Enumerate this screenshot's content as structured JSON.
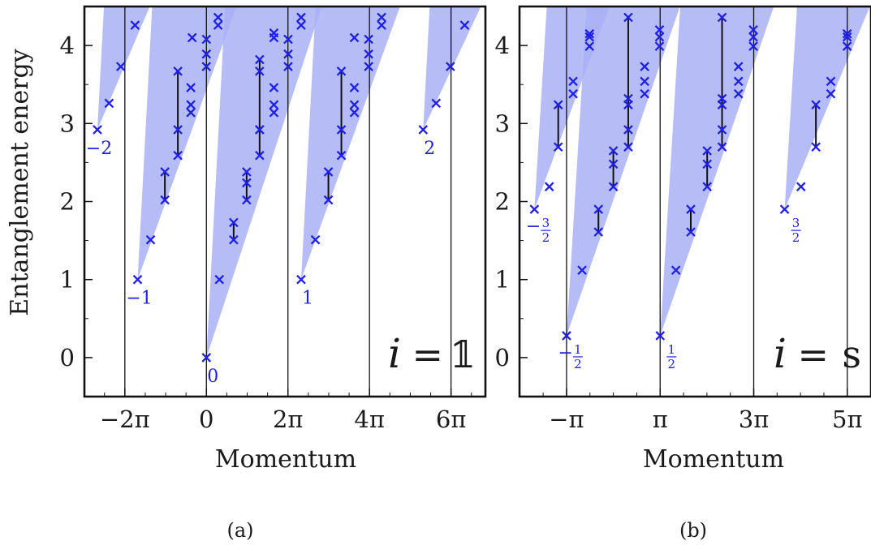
{
  "figure": {
    "panel_a_caption": "(a)",
    "panel_b_caption": "(b)"
  },
  "chart_data": [
    {
      "type": "scatter",
      "panel": "a",
      "xlabel": "Momentum",
      "ylabel": "Entanglement energy",
      "title": "",
      "xlim": [
        -9.4,
        21.5
      ],
      "ylim": [
        -0.5,
        4.5
      ],
      "x_unit": "π",
      "xticks": [
        -6.283,
        0,
        6.283,
        12.566,
        18.85
      ],
      "xtick_labels": [
        "−2π",
        "0",
        "2π",
        "4π",
        "6π"
      ],
      "yticks": [
        0,
        1,
        2,
        3,
        4
      ],
      "ytick_labels": [
        "0",
        "1",
        "2",
        "3",
        "4"
      ],
      "vlines": [
        -6.283,
        0,
        6.283,
        12.566,
        18.85
      ],
      "annotation": {
        "lhs": "i",
        "eq": "=",
        "rhs": "𝟙"
      },
      "marker_color": "#1f1fe6",
      "cone_color": "#a9b0f5",
      "sectors": [
        {
          "label": "−2",
          "apex": [
            -8.4,
            2.92
          ],
          "points": [
            [
              -8.4,
              2.92
            ],
            [
              -7.5,
              3.26
            ],
            [
              -6.6,
              3.73
            ],
            [
              -5.5,
              4.26
            ]
          ],
          "bars": []
        },
        {
          "label": "−1",
          "apex": [
            -5.3,
            1.0
          ],
          "points": [
            [
              -5.3,
              1.0
            ],
            [
              -4.3,
              1.51
            ],
            [
              -3.2,
              2.02
            ],
            [
              -3.2,
              2.38
            ],
            [
              -2.2,
              2.59
            ],
            [
              -2.2,
              2.92
            ],
            [
              -2.2,
              3.67
            ],
            [
              -1.2,
              3.14
            ],
            [
              -1.2,
              3.24
            ],
            [
              -1.2,
              3.46
            ],
            [
              -1.1,
              4.1
            ],
            [
              0,
              3.73
            ],
            [
              0,
              3.89
            ],
            [
              0,
              4.08
            ],
            [
              0.9,
              4.26
            ],
            [
              0.9,
              4.36
            ]
          ],
          "bars": [
            [
              -3.2,
              2.02,
              2.38
            ],
            [
              -2.2,
              2.59,
              3.67
            ]
          ]
        },
        {
          "label": "0",
          "apex": [
            0,
            0.0
          ],
          "points": [
            [
              0,
              0.0
            ],
            [
              1.0,
              1.0
            ],
            [
              2.1,
              1.51
            ],
            [
              2.1,
              1.73
            ],
            [
              3.1,
              2.02
            ],
            [
              3.1,
              2.24
            ],
            [
              3.1,
              2.38
            ],
            [
              4.1,
              2.59
            ],
            [
              4.1,
              2.92
            ],
            [
              4.1,
              2.92
            ],
            [
              4.1,
              3.67
            ],
            [
              4.1,
              3.82
            ],
            [
              5.2,
              3.14
            ],
            [
              5.2,
              3.24
            ],
            [
              5.2,
              3.46
            ],
            [
              5.2,
              4.1
            ],
            [
              5.2,
              4.16
            ],
            [
              6.3,
              3.73
            ],
            [
              6.3,
              3.89
            ],
            [
              6.3,
              4.08
            ],
            [
              7.3,
              4.26
            ],
            [
              7.3,
              4.36
            ]
          ],
          "bars": [
            [
              2.1,
              1.51,
              1.73
            ],
            [
              3.1,
              2.02,
              2.38
            ],
            [
              4.1,
              2.59,
              3.82
            ]
          ]
        },
        {
          "label": "1",
          "apex": [
            7.3,
            1.0
          ],
          "points": [
            [
              7.3,
              1.0
            ],
            [
              8.4,
              1.51
            ],
            [
              9.4,
              2.02
            ],
            [
              9.4,
              2.38
            ],
            [
              10.4,
              2.59
            ],
            [
              10.4,
              2.92
            ],
            [
              10.4,
              3.67
            ],
            [
              11.4,
              3.14
            ],
            [
              11.4,
              3.24
            ],
            [
              11.4,
              3.46
            ],
            [
              11.4,
              4.1
            ],
            [
              12.5,
              3.73
            ],
            [
              12.5,
              3.89
            ],
            [
              12.5,
              4.08
            ],
            [
              13.5,
              4.26
            ],
            [
              13.5,
              4.36
            ]
          ],
          "bars": [
            [
              9.4,
              2.02,
              2.38
            ],
            [
              10.4,
              2.59,
              3.67
            ]
          ]
        },
        {
          "label": "2",
          "apex": [
            16.7,
            2.92
          ],
          "points": [
            [
              16.7,
              2.92
            ],
            [
              17.7,
              3.26
            ],
            [
              18.8,
              3.73
            ],
            [
              19.9,
              4.26
            ]
          ],
          "bars": []
        }
      ]
    },
    {
      "type": "scatter",
      "panel": "b",
      "xlabel": "Momentum",
      "ylabel": "",
      "title": "",
      "xlim": [
        -6.3,
        17.3
      ],
      "ylim": [
        -0.5,
        4.5
      ],
      "x_unit": "π",
      "xticks": [
        -3.142,
        3.142,
        9.425,
        15.708
      ],
      "xtick_labels": [
        "−π",
        "π",
        "3π",
        "5π"
      ],
      "yticks": [
        0,
        1,
        2,
        3,
        4
      ],
      "ytick_labels": [
        "0",
        "1",
        "2",
        "3",
        "4"
      ],
      "vlines": [
        -3.142,
        3.142,
        9.425,
        15.708
      ],
      "annotation": {
        "lhs": "i",
        "eq": "=",
        "rhs": "s"
      },
      "marker_color": "#1f1fe6",
      "cone_color": "#a9b0f5",
      "sectors": [
        {
          "label_num": "3",
          "label_den": "2",
          "label_sign": "−",
          "apex": [
            -5.3,
            1.9
          ],
          "points": [
            [
              -5.3,
              1.9
            ],
            [
              -4.3,
              2.19
            ],
            [
              -3.7,
              2.7
            ],
            [
              -3.7,
              3.24
            ],
            [
              -2.7,
              3.38
            ],
            [
              -2.7,
              3.54
            ],
            [
              -1.6,
              3.99
            ],
            [
              -1.6,
              4.11
            ],
            [
              -1.6,
              4.15
            ]
          ],
          "bars": [
            [
              -3.7,
              2.7,
              3.24
            ]
          ]
        },
        {
          "label_num": "1",
          "label_den": "2",
          "label_sign": "−",
          "apex": [
            -3.142,
            0.28
          ],
          "points": [
            [
              -3.142,
              0.28
            ],
            [
              -2.1,
              1.12
            ],
            [
              -1.0,
              1.61
            ],
            [
              -1.0,
              1.9
            ],
            [
              0.0,
              2.19
            ],
            [
              0.0,
              2.48
            ],
            [
              0.0,
              2.65
            ],
            [
              1.0,
              2.7
            ],
            [
              1.0,
              2.92
            ],
            [
              1.0,
              3.24
            ],
            [
              1.0,
              3.32
            ],
            [
              1.0,
              4.36
            ],
            [
              2.1,
              3.38
            ],
            [
              2.1,
              3.54
            ],
            [
              2.1,
              3.73
            ],
            [
              3.1,
              3.99
            ],
            [
              3.1,
              4.11
            ],
            [
              3.1,
              4.2
            ]
          ],
          "bars": [
            [
              -1.0,
              1.61,
              1.9
            ],
            [
              0.0,
              2.19,
              2.65
            ],
            [
              1.0,
              2.7,
              4.36
            ]
          ]
        },
        {
          "label_num": "1",
          "label_den": "2",
          "label_sign": "",
          "apex": [
            3.142,
            0.28
          ],
          "points": [
            [
              3.142,
              0.28
            ],
            [
              4.2,
              1.12
            ],
            [
              5.2,
              1.61
            ],
            [
              5.2,
              1.9
            ],
            [
              6.3,
              2.19
            ],
            [
              6.3,
              2.48
            ],
            [
              6.3,
              2.65
            ],
            [
              7.3,
              2.7
            ],
            [
              7.3,
              2.92
            ],
            [
              7.3,
              3.24
            ],
            [
              7.3,
              3.32
            ],
            [
              7.3,
              4.36
            ],
            [
              8.4,
              3.38
            ],
            [
              8.4,
              3.54
            ],
            [
              8.4,
              3.73
            ],
            [
              9.4,
              3.99
            ],
            [
              9.4,
              4.11
            ],
            [
              9.4,
              4.2
            ]
          ],
          "bars": [
            [
              5.2,
              1.61,
              1.9
            ],
            [
              6.3,
              2.19,
              2.65
            ],
            [
              7.3,
              2.7,
              4.36
            ]
          ]
        },
        {
          "label_num": "3",
          "label_den": "2",
          "label_sign": "",
          "apex": [
            11.5,
            1.9
          ],
          "points": [
            [
              11.5,
              1.9
            ],
            [
              12.6,
              2.19
            ],
            [
              13.6,
              2.7
            ],
            [
              13.6,
              3.24
            ],
            [
              14.6,
              3.38
            ],
            [
              14.6,
              3.54
            ],
            [
              15.7,
              3.99
            ],
            [
              15.7,
              4.11
            ],
            [
              15.7,
              4.15
            ]
          ],
          "bars": [
            [
              13.6,
              2.7,
              3.24
            ]
          ]
        }
      ]
    }
  ]
}
